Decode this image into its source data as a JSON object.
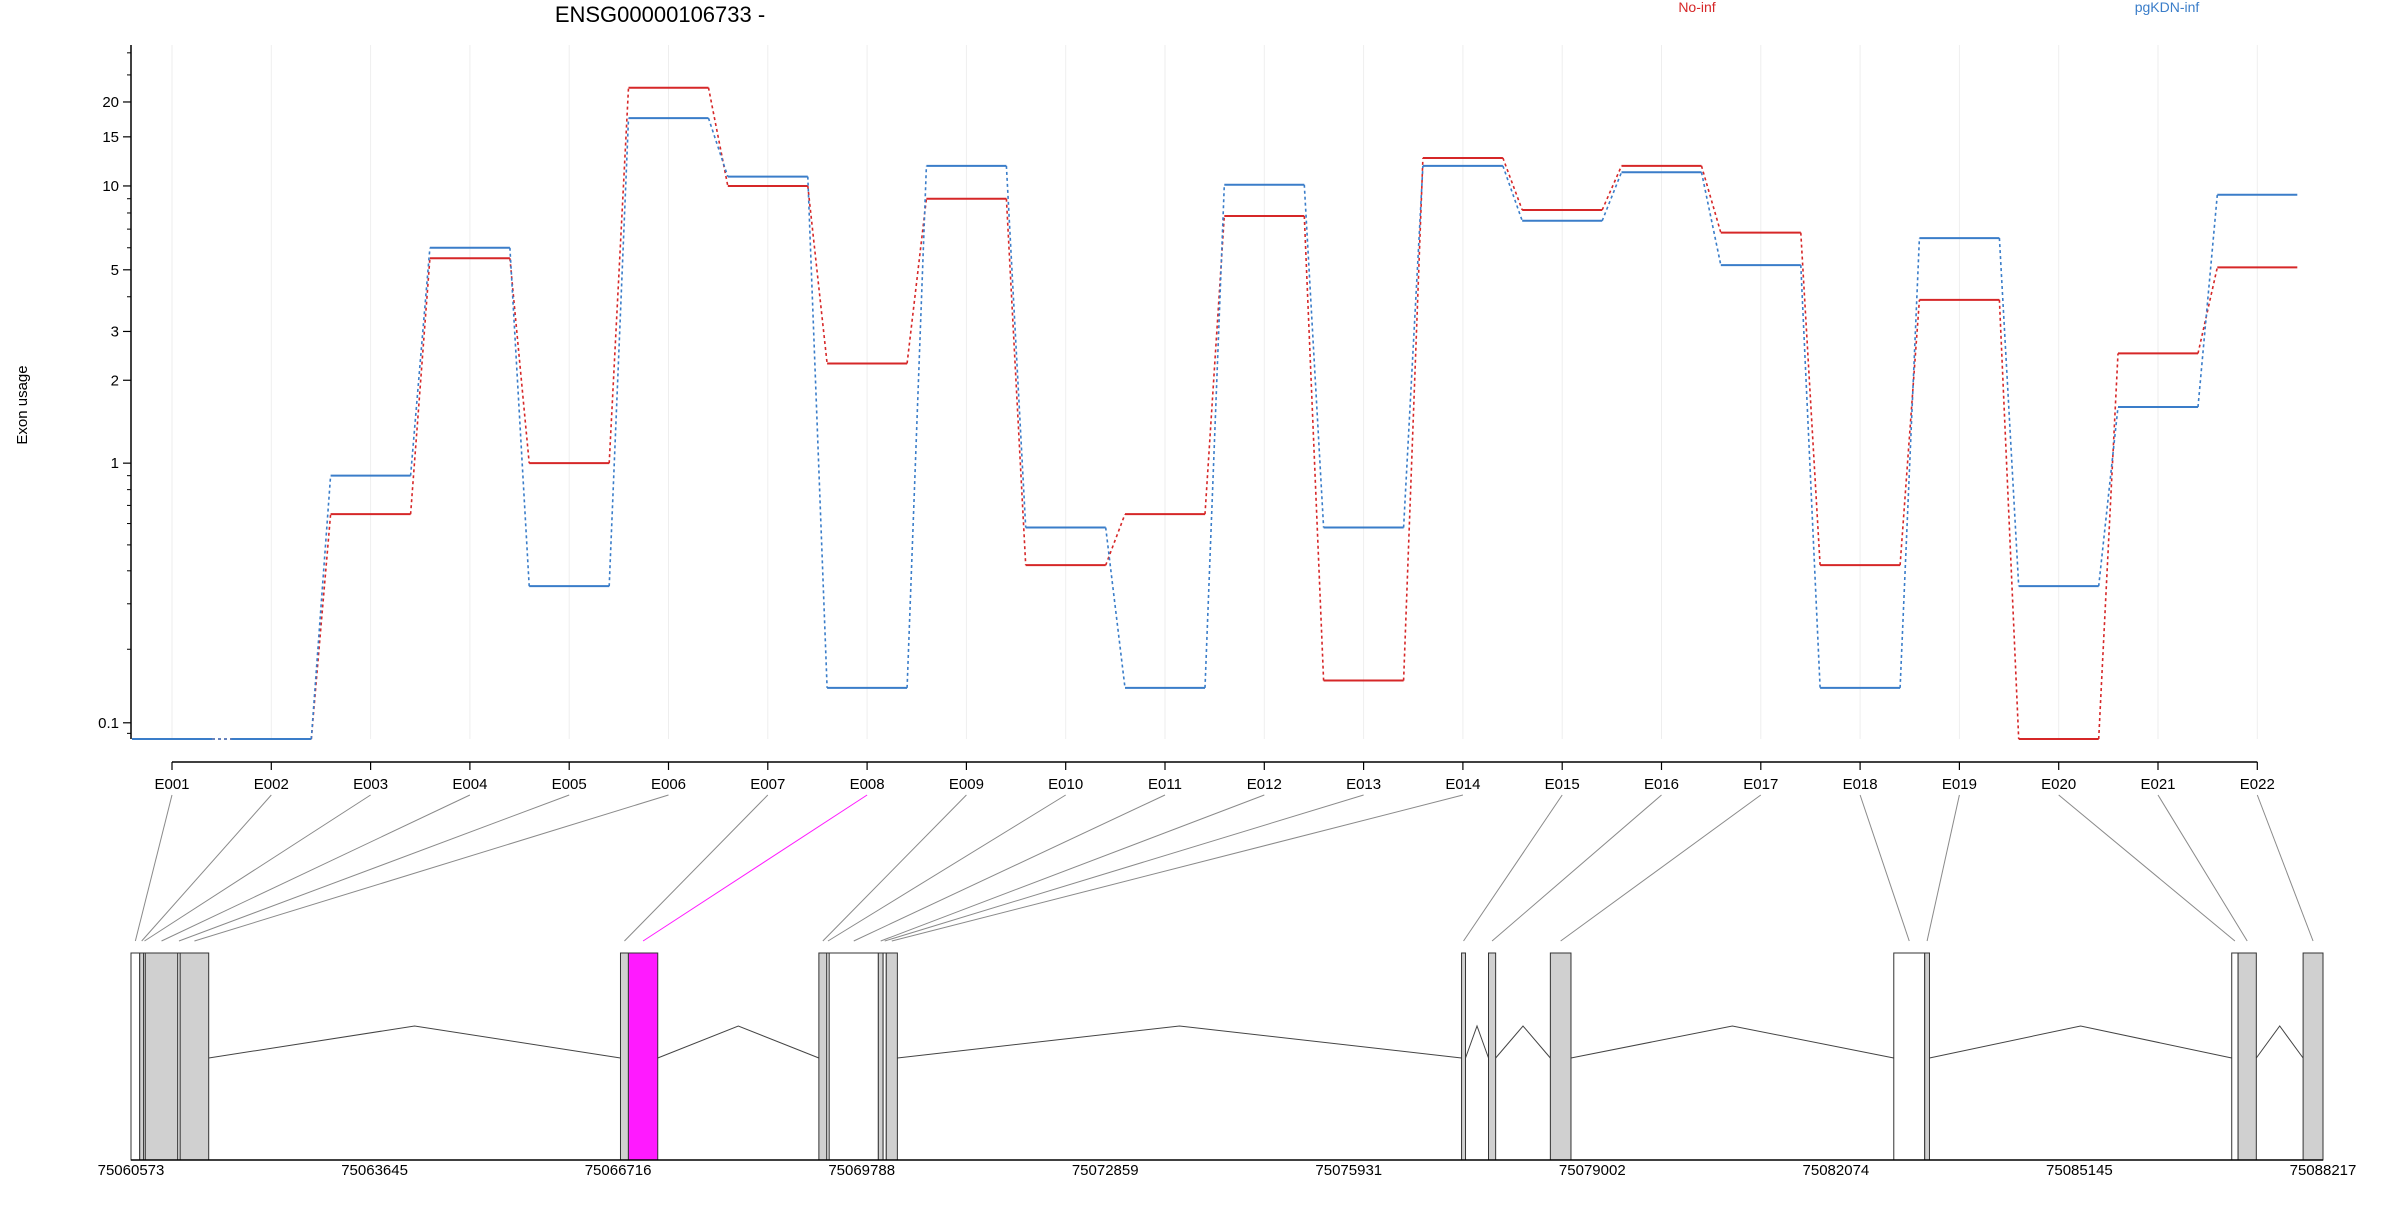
{
  "chart_data": {
    "type": "line",
    "title": "ENSG00000106733 -",
    "ylabel": "Exon usage",
    "xlabel": "",
    "y_scale": "log (offset)",
    "ylim": [
      0.085,
      32
    ],
    "y_ticks": [
      {
        "value": 0.1,
        "label": "0.1"
      },
      {
        "value": 1,
        "label": "1"
      },
      {
        "value": 2,
        "label": "2"
      },
      {
        "value": 3,
        "label": "3"
      },
      {
        "value": 5,
        "label": "5"
      },
      {
        "value": 10,
        "label": "10"
      },
      {
        "value": 15,
        "label": "15"
      },
      {
        "value": 20,
        "label": "20"
      }
    ],
    "categories": [
      "E001",
      "E002",
      "E003",
      "E004",
      "E005",
      "E006",
      "E007",
      "E008",
      "E009",
      "E010",
      "E011",
      "E012",
      "E013",
      "E014",
      "E015",
      "E016",
      "E017",
      "E018",
      "E019",
      "E020",
      "E021",
      "E022"
    ],
    "highlighted_category": "E008",
    "series": [
      {
        "name": "No-inf",
        "color": "#d62728",
        "values": [
          0.085,
          0.085,
          0.65,
          5.5,
          1.0,
          22.5,
          10.0,
          2.3,
          9.0,
          0.42,
          0.65,
          7.8,
          0.15,
          12.6,
          8.2,
          11.8,
          6.8,
          0.42,
          3.9,
          0.085,
          2.5,
          5.1
        ]
      },
      {
        "name": "pgKDN-inf",
        "color": "#3a7dc9",
        "values": [
          0.085,
          0.085,
          0.9,
          6.0,
          0.35,
          17.5,
          10.8,
          0.14,
          11.8,
          0.58,
          0.14,
          10.1,
          0.58,
          11.8,
          7.5,
          11.2,
          5.2,
          0.14,
          6.5,
          0.35,
          1.6,
          9.3
        ]
      }
    ],
    "grid": "light vertical lines at exon positions",
    "legend_placement": "top (above plot, right side)",
    "gene_model": {
      "x_ticks": [
        "75060573",
        "75063645",
        "75066716",
        "75069788",
        "75072859",
        "75075931",
        "75079002",
        "75082074",
        "75085145",
        "75088217"
      ],
      "xlim": [
        75060573,
        75088217
      ],
      "highlight_color": "#ff1aff",
      "exon_fill": "#d0d0d0",
      "exons": [
        {
          "id": "E001",
          "start": 75060573,
          "end": 75060683,
          "filled": false
        },
        {
          "id": "E002",
          "start": 75060683,
          "end": 75060733,
          "filled": true
        },
        {
          "id": "E003",
          "start": 75060733,
          "end": 75060753,
          "filled": false
        },
        {
          "id": "E004",
          "start": 75060753,
          "end": 75061163,
          "filled": true
        },
        {
          "id": "E005",
          "start": 75061163,
          "end": 75061193,
          "filled": false
        },
        {
          "id": "E006",
          "start": 75061193,
          "end": 75061553,
          "filled": true
        },
        {
          "id": "E007",
          "start": 75066746,
          "end": 75066846,
          "filled": true
        },
        {
          "id": "E008",
          "start": 75066846,
          "end": 75067216,
          "filled": true
        },
        {
          "id": "E009",
          "start": 75069248,
          "end": 75069348,
          "filled": true
        },
        {
          "id": "E010",
          "start": 75069348,
          "end": 75069378,
          "filled": false
        },
        {
          "id": "E011",
          "start": 75069378,
          "end": 75069998,
          "filled": false
        },
        {
          "id": "E012",
          "start": 75069998,
          "end": 75070058,
          "filled": true
        },
        {
          "id": "E013",
          "start": 75070058,
          "end": 75070098,
          "filled": false
        },
        {
          "id": "E014",
          "start": 75070098,
          "end": 75070238,
          "filled": true
        },
        {
          "id": "E015",
          "start": 75077353,
          "end": 75077403,
          "filled": true
        },
        {
          "id": "E016",
          "start": 75077693,
          "end": 75077783,
          "filled": true
        },
        {
          "id": "E017",
          "start": 75078473,
          "end": 75078733,
          "filled": true
        },
        {
          "id": "E018",
          "start": 75082804,
          "end": 75083194,
          "filled": false
        },
        {
          "id": "E019",
          "start": 75083194,
          "end": 75083254,
          "filled": true
        },
        {
          "id": "E020",
          "start": 75087066,
          "end": 75087146,
          "filled": false
        },
        {
          "id": "E021",
          "start": 75087146,
          "end": 75087376,
          "filled": true
        },
        {
          "id": "E022",
          "start": 75087966,
          "end": 75088217,
          "filled": true
        }
      ],
      "introns": [
        [
          75061553,
          75066746
        ],
        [
          75067216,
          75069248
        ],
        [
          75070238,
          75077353
        ],
        [
          75077403,
          75077693
        ],
        [
          75077783,
          75078473
        ],
        [
          75078733,
          75082804
        ],
        [
          75083254,
          75087066
        ],
        [
          75087376,
          75087966
        ]
      ]
    }
  }
}
